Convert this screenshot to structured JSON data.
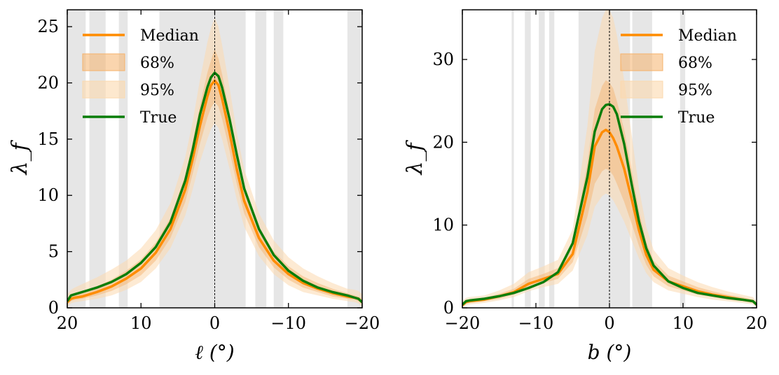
{
  "colors": {
    "median": "#ff8c00",
    "band68": "#f5b26b",
    "band95": "#fbd9ae",
    "truth": "#0a7d0a",
    "mask": "#e6e6e6",
    "axis": "#000000"
  },
  "chart_data": [
    {
      "type": "line",
      "xlabel": "ℓ (°)",
      "ylabel": "λ_f",
      "xlim": [
        20,
        -20
      ],
      "ylim": [
        0,
        26.5
      ],
      "xticks": [
        20,
        10,
        0,
        -10,
        -20
      ],
      "xtick_labels": [
        "20",
        "10",
        "0",
        "−10",
        "−20"
      ],
      "yticks": [
        0,
        5,
        10,
        15,
        20,
        25
      ],
      "ytick_labels": [
        "0",
        "5",
        "10",
        "15",
        "20",
        "25"
      ],
      "legend_position": "upper-left",
      "legend": [
        "Median",
        "68%",
        "95%",
        "True"
      ],
      "vline_x": 0,
      "masked_ranges": [
        [
          20,
          17.5
        ],
        [
          17,
          14.8
        ],
        [
          13,
          11.8
        ],
        [
          7.5,
          -4.2
        ],
        [
          -5.5,
          -7
        ],
        [
          -8,
          -9.3
        ],
        [
          -18,
          -20
        ]
      ],
      "x": [
        20,
        19.5,
        19,
        18,
        16,
        14,
        12,
        10,
        8,
        6,
        4,
        3,
        2,
        1,
        0.5,
        0,
        -0.5,
        -1,
        -2,
        -3,
        -4,
        -6,
        -8,
        -10,
        -12,
        -14,
        -16,
        -18,
        -19,
        -19.5,
        -20
      ],
      "series": [
        {
          "name": "Median",
          "values": [
            0.5,
            0.8,
            0.9,
            1.0,
            1.4,
            1.9,
            2.6,
            3.5,
            4.9,
            7.0,
            10.5,
            13.2,
            16.2,
            18.8,
            19.8,
            20.2,
            19.8,
            18.6,
            15.6,
            12.3,
            9.5,
            6.2,
            4.2,
            3.0,
            2.2,
            1.7,
            1.3,
            1.0,
            0.9,
            0.8,
            0.5
          ]
        },
        {
          "name": "True",
          "values": [
            0.6,
            1.1,
            1.2,
            1.4,
            1.8,
            2.3,
            3.0,
            4.0,
            5.4,
            7.6,
            11.3,
            14.0,
            17.2,
            19.6,
            20.5,
            20.9,
            20.6,
            19.6,
            16.8,
            13.6,
            10.6,
            7.0,
            4.7,
            3.3,
            2.4,
            1.8,
            1.4,
            1.1,
            0.9,
            0.8,
            0.5
          ]
        }
      ],
      "band68": {
        "lower": [
          0.3,
          0.6,
          0.7,
          0.8,
          1.1,
          1.5,
          2.1,
          2.9,
          4.2,
          6.2,
          9.4,
          11.9,
          14.6,
          16.9,
          17.8,
          18.3,
          17.9,
          16.8,
          14.0,
          11.0,
          8.4,
          5.4,
          3.6,
          2.5,
          1.8,
          1.4,
          1.0,
          0.8,
          0.7,
          0.6,
          0.3
        ],
        "upper": [
          0.8,
          1.1,
          1.2,
          1.4,
          1.9,
          2.5,
          3.3,
          4.3,
          5.8,
          8.0,
          11.8,
          14.7,
          18.0,
          20.9,
          22.0,
          23.0,
          22.2,
          20.8,
          17.4,
          13.8,
          10.8,
          7.2,
          5.0,
          3.7,
          2.8,
          2.2,
          1.7,
          1.3,
          1.1,
          1.0,
          0.8
        ]
      },
      "band95": {
        "lower": [
          0.1,
          0.4,
          0.5,
          0.6,
          0.8,
          1.1,
          1.6,
          2.3,
          3.5,
          5.3,
          8.2,
          10.5,
          13.0,
          15.0,
          15.9,
          16.4,
          16.0,
          15.0,
          12.4,
          9.6,
          7.2,
          4.6,
          3.0,
          2.0,
          1.4,
          1.1,
          0.8,
          0.6,
          0.5,
          0.4,
          0.1
        ],
        "upper": [
          1.2,
          1.6,
          1.8,
          2.1,
          2.7,
          3.4,
          4.2,
          5.3,
          6.9,
          9.3,
          13.4,
          16.5,
          20.3,
          23.6,
          24.9,
          25.8,
          25.0,
          23.4,
          19.6,
          15.6,
          12.3,
          8.4,
          6.0,
          4.5,
          3.5,
          2.8,
          2.2,
          1.7,
          1.6,
          1.5,
          1.2
        ]
      }
    },
    {
      "type": "line",
      "xlabel": "b (°)",
      "ylabel": "λ_f",
      "xlim": [
        -20,
        20
      ],
      "ylim": [
        0,
        36
      ],
      "xticks": [
        -20,
        -10,
        0,
        10,
        20
      ],
      "xtick_labels": [
        "−20",
        "−10",
        "0",
        "10",
        "20"
      ],
      "yticks": [
        0,
        10,
        20,
        30
      ],
      "ytick_labels": [
        "0",
        "10",
        "20",
        "30"
      ],
      "legend_position": "upper-right",
      "legend": [
        "Median",
        "68%",
        "95%",
        "True"
      ],
      "vline_x": 0,
      "masked_ranges": [
        [
          -13.3,
          -13
        ],
        [
          -11.5,
          -10.7
        ],
        [
          -9.6,
          -8.8
        ],
        [
          -8.2,
          -7.5
        ],
        [
          -4.2,
          2.8
        ],
        [
          3.1,
          5.8
        ],
        [
          9.6,
          10.3
        ]
      ],
      "x": [
        -20,
        -19.5,
        -19,
        -17,
        -15,
        -13,
        -11,
        -9,
        -7,
        -5,
        -3,
        -2,
        -1,
        -0.5,
        0,
        0.5,
        1,
        2,
        3,
        4,
        5,
        6,
        8,
        10,
        12,
        14,
        16,
        18,
        19.5,
        20
      ],
      "series": [
        {
          "name": "Median",
          "values": [
            0.3,
            0.7,
            0.8,
            1.0,
            1.4,
            1.9,
            2.9,
            3.5,
            4.1,
            6.5,
            14.0,
            19.5,
            21.2,
            21.5,
            21.2,
            20.5,
            19.5,
            16.8,
            13.2,
            9.4,
            6.4,
            4.6,
            3.2,
            2.6,
            2.0,
            1.6,
            1.3,
            1.0,
            0.8,
            0.4
          ]
        },
        {
          "name": "True",
          "values": [
            0.4,
            0.8,
            0.9,
            1.1,
            1.4,
            1.8,
            2.4,
            3.1,
            4.3,
            7.8,
            15.8,
            21.3,
            24.0,
            24.5,
            24.6,
            24.3,
            23.4,
            19.8,
            15.0,
            10.5,
            7.2,
            5.1,
            3.2,
            2.4,
            1.8,
            1.5,
            1.2,
            1.0,
            0.8,
            0.4
          ]
        }
      ],
      "band68": {
        "lower": [
          0.2,
          0.5,
          0.6,
          0.8,
          1.1,
          1.6,
          2.4,
          3.0,
          3.5,
          5.5,
          11.0,
          15.0,
          16.5,
          16.8,
          16.6,
          16.0,
          15.0,
          12.8,
          10.2,
          7.5,
          5.2,
          3.8,
          2.6,
          2.1,
          1.6,
          1.3,
          1.0,
          0.8,
          0.6,
          0.2
        ],
        "upper": [
          0.5,
          0.9,
          1.0,
          1.2,
          1.7,
          2.3,
          3.5,
          4.1,
          4.8,
          7.8,
          17.5,
          24.0,
          26.8,
          27.5,
          27.2,
          26.5,
          25.0,
          21.5,
          16.8,
          11.8,
          8.0,
          5.7,
          3.9,
          3.2,
          2.5,
          2.0,
          1.6,
          1.3,
          1.0,
          0.5
        ]
      },
      "band95": {
        "lower": [
          0.1,
          0.3,
          0.4,
          0.6,
          0.9,
          1.3,
          2.0,
          2.5,
          2.9,
          4.5,
          8.8,
          12.2,
          13.5,
          13.8,
          13.6,
          13.0,
          12.2,
          10.4,
          8.2,
          6.0,
          4.2,
          3.1,
          2.1,
          1.7,
          1.3,
          1.0,
          0.8,
          0.6,
          0.4,
          0.1
        ],
        "upper": [
          0.8,
          1.2,
          1.3,
          1.5,
          2.1,
          2.9,
          4.3,
          5.0,
          5.8,
          9.5,
          22.0,
          31.0,
          35.0,
          36.0,
          36.0,
          35.0,
          33.0,
          27.5,
          21.0,
          14.5,
          9.8,
          7.0,
          4.8,
          3.9,
          3.1,
          2.5,
          2.0,
          1.6,
          1.3,
          0.8
        ]
      }
    }
  ]
}
